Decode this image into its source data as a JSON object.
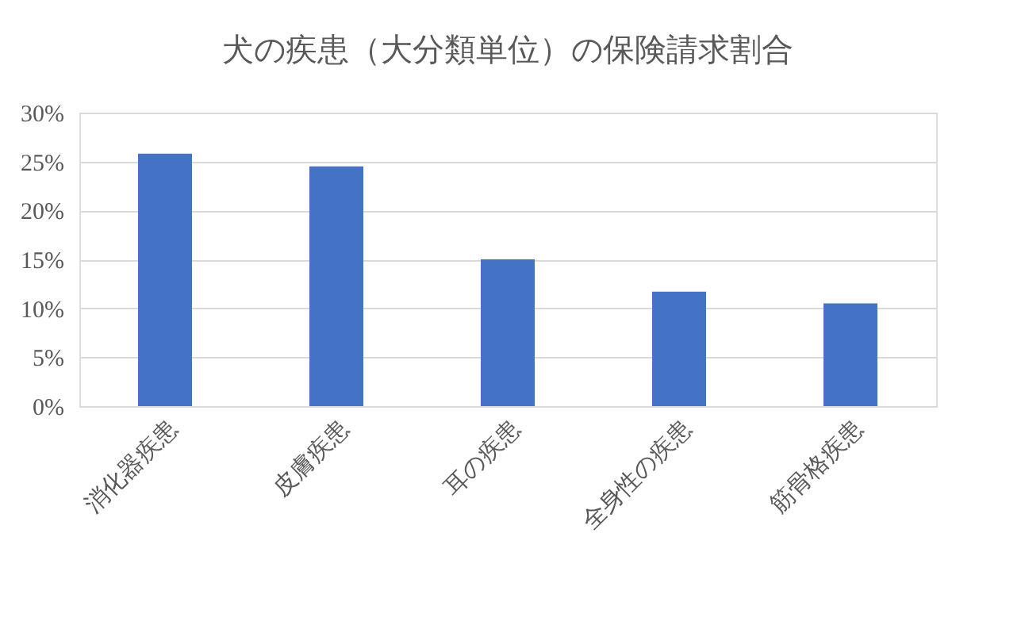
{
  "chart_data": {
    "type": "bar",
    "title": "犬の疾患（大分類単位）の保険請求割合",
    "categories": [
      "消化器疾患",
      "皮膚疾患",
      "耳の疾患",
      "全身性の疾患",
      "筋骨格疾患"
    ],
    "values": [
      25.8,
      24.5,
      15.0,
      11.7,
      10.5
    ],
    "color": "#4472c4",
    "ylim": [
      0,
      30
    ],
    "yticks": [
      {
        "value": 0,
        "label": "0%"
      },
      {
        "value": 5,
        "label": "5%"
      },
      {
        "value": 10,
        "label": "10%"
      },
      {
        "value": 15,
        "label": "15%"
      },
      {
        "value": 20,
        "label": "20%"
      },
      {
        "value": 25,
        "label": "25%"
      },
      {
        "value": 30,
        "label": "30%"
      }
    ],
    "grid": "y"
  }
}
